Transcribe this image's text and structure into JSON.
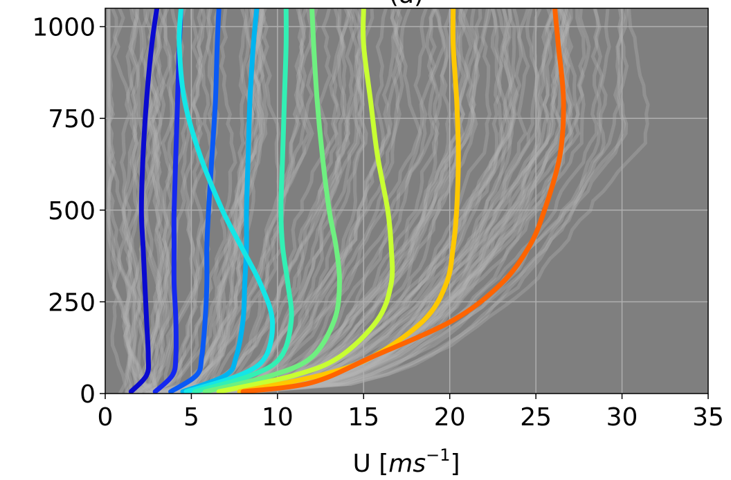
{
  "chart_data": {
    "type": "line",
    "title": "(a)",
    "xlabel_main": "U [",
    "xlabel_unit": "ms",
    "xlabel_sup": "−1",
    "xlabel_close": "]",
    "ylabel": "",
    "xlim": [
      0,
      35
    ],
    "ylim": [
      0,
      1050
    ],
    "xticks": [
      0,
      5,
      10,
      15,
      20,
      25,
      30,
      35
    ],
    "xtick_labels": [
      "0",
      "5",
      "10",
      "15",
      "20",
      "25",
      "30",
      "35"
    ],
    "yticks": [
      0,
      250,
      500,
      750,
      1000
    ],
    "ytick_labels": [
      "0",
      "250",
      "500",
      "750",
      "1000"
    ],
    "grid": true,
    "legend": "none",
    "background_ensemble_color": "#808080",
    "series": [
      {
        "color": "#0a0ad0",
        "x": [
          1.5,
          2.4,
          2.5,
          2.4,
          2.3,
          2.2,
          2.1,
          2.2,
          2.4,
          2.7,
          3.0
        ],
        "y": [
          5,
          50,
          100,
          200,
          300,
          400,
          500,
          650,
          800,
          950,
          1050
        ]
      },
      {
        "color": "#1428f0",
        "x": [
          2.9,
          3.9,
          4.1,
          4.1,
          4.0,
          4.0,
          4.0,
          4.1,
          4.2,
          4.3,
          4.4
        ],
        "y": [
          5,
          50,
          100,
          200,
          300,
          400,
          500,
          650,
          800,
          950,
          1050
        ]
      },
      {
        "color": "#0a5af5",
        "x": [
          3.8,
          5.3,
          5.6,
          5.8,
          5.9,
          5.9,
          6.0,
          6.2,
          6.4,
          6.5,
          6.6
        ],
        "y": [
          5,
          50,
          100,
          200,
          300,
          400,
          500,
          650,
          800,
          950,
          1050
        ]
      },
      {
        "color": "#00b4f0",
        "x": [
          4.5,
          7.0,
          7.6,
          8.0,
          8.1,
          8.2,
          8.2,
          8.3,
          8.4,
          8.6,
          8.8
        ],
        "y": [
          5,
          50,
          100,
          200,
          300,
          400,
          500,
          650,
          800,
          950,
          1050
        ]
      },
      {
        "color": "#14e6e6",
        "x": [
          4.7,
          7.8,
          9.3,
          9.7,
          9.0,
          7.9,
          6.8,
          5.5,
          4.6,
          4.3,
          4.4
        ],
        "y": [
          5,
          50,
          100,
          200,
          300,
          400,
          500,
          650,
          800,
          950,
          1050
        ]
      },
      {
        "color": "#32f0b4",
        "x": [
          5.2,
          8.5,
          10.2,
          10.8,
          10.6,
          10.3,
          10.2,
          10.3,
          10.4,
          10.5,
          10.5
        ],
        "y": [
          5,
          50,
          100,
          200,
          300,
          400,
          500,
          650,
          800,
          950,
          1050
        ]
      },
      {
        "color": "#6ef080",
        "x": [
          5.8,
          9.7,
          12.0,
          13.3,
          13.6,
          13.4,
          13.0,
          12.6,
          12.3,
          12.1,
          12.0
        ],
        "y": [
          5,
          50,
          100,
          200,
          300,
          400,
          500,
          650,
          800,
          950,
          1050
        ]
      },
      {
        "color": "#c8ff32",
        "x": [
          6.6,
          11.0,
          13.6,
          15.8,
          16.6,
          16.6,
          16.4,
          15.8,
          15.4,
          15.0,
          15.0
        ],
        "y": [
          5,
          50,
          100,
          200,
          300,
          400,
          500,
          650,
          800,
          950,
          1050
        ]
      },
      {
        "color": "#ffc800",
        "x": [
          7.8,
          12.5,
          15.5,
          18.5,
          19.8,
          20.2,
          20.4,
          20.5,
          20.4,
          20.2,
          20.2
        ],
        "y": [
          5,
          50,
          100,
          200,
          300,
          400,
          500,
          650,
          800,
          950,
          1050
        ]
      },
      {
        "color": "#ff6400",
        "x": [
          8.0,
          12.0,
          15.5,
          20.2,
          23.0,
          24.6,
          25.5,
          26.4,
          26.6,
          26.3,
          26.1
        ],
        "y": [
          5,
          30,
          100,
          200,
          300,
          400,
          500,
          650,
          800,
          950,
          1050
        ]
      }
    ]
  }
}
